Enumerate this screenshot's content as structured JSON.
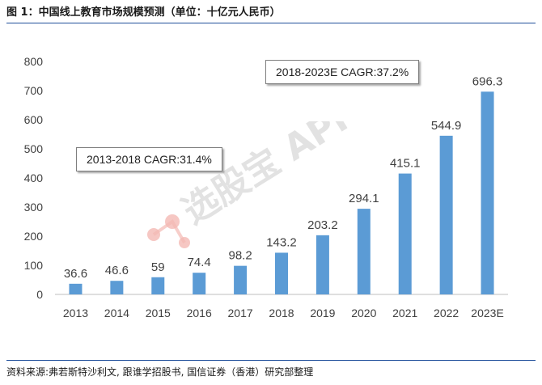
{
  "header": {
    "title": "图 1：中国线上教育市场规模预测（单位：十亿元人民币）"
  },
  "footer": {
    "source": "资料来源:弗若斯特沙利文, 跟谁学招股书, 国信证券（香港）研究部整理"
  },
  "watermark": {
    "text": "选股宝 APP"
  },
  "annotations": {
    "cagr_1": "2013-2018 CAGR:31.4%",
    "cagr_2": "2018-2023E CAGR:37.2%"
  },
  "colors": {
    "bar": "#5b9bd5",
    "rule": "#1f4e9a",
    "watermark_logo": "#f4b9b4"
  },
  "chart_data": {
    "type": "bar",
    "categories": [
      "2013",
      "2014",
      "2015",
      "2016",
      "2017",
      "2018",
      "2019",
      "2020",
      "2021",
      "2022",
      "2023E"
    ],
    "values": [
      36.6,
      46.6,
      59,
      74.4,
      98.2,
      143.2,
      203.2,
      294.1,
      415.1,
      544.9,
      696.3
    ],
    "value_labels": [
      "36.6",
      "46.6",
      "59",
      "74.4",
      "98.2",
      "143.2",
      "203.2",
      "294.1",
      "415.1",
      "544.9",
      "696.3"
    ],
    "yticks": [
      "0",
      "100",
      "200",
      "300",
      "400",
      "500",
      "600",
      "700",
      "800"
    ],
    "ylim": [
      0,
      800
    ],
    "title": "",
    "xlabel": "",
    "ylabel": "",
    "grid": false
  }
}
